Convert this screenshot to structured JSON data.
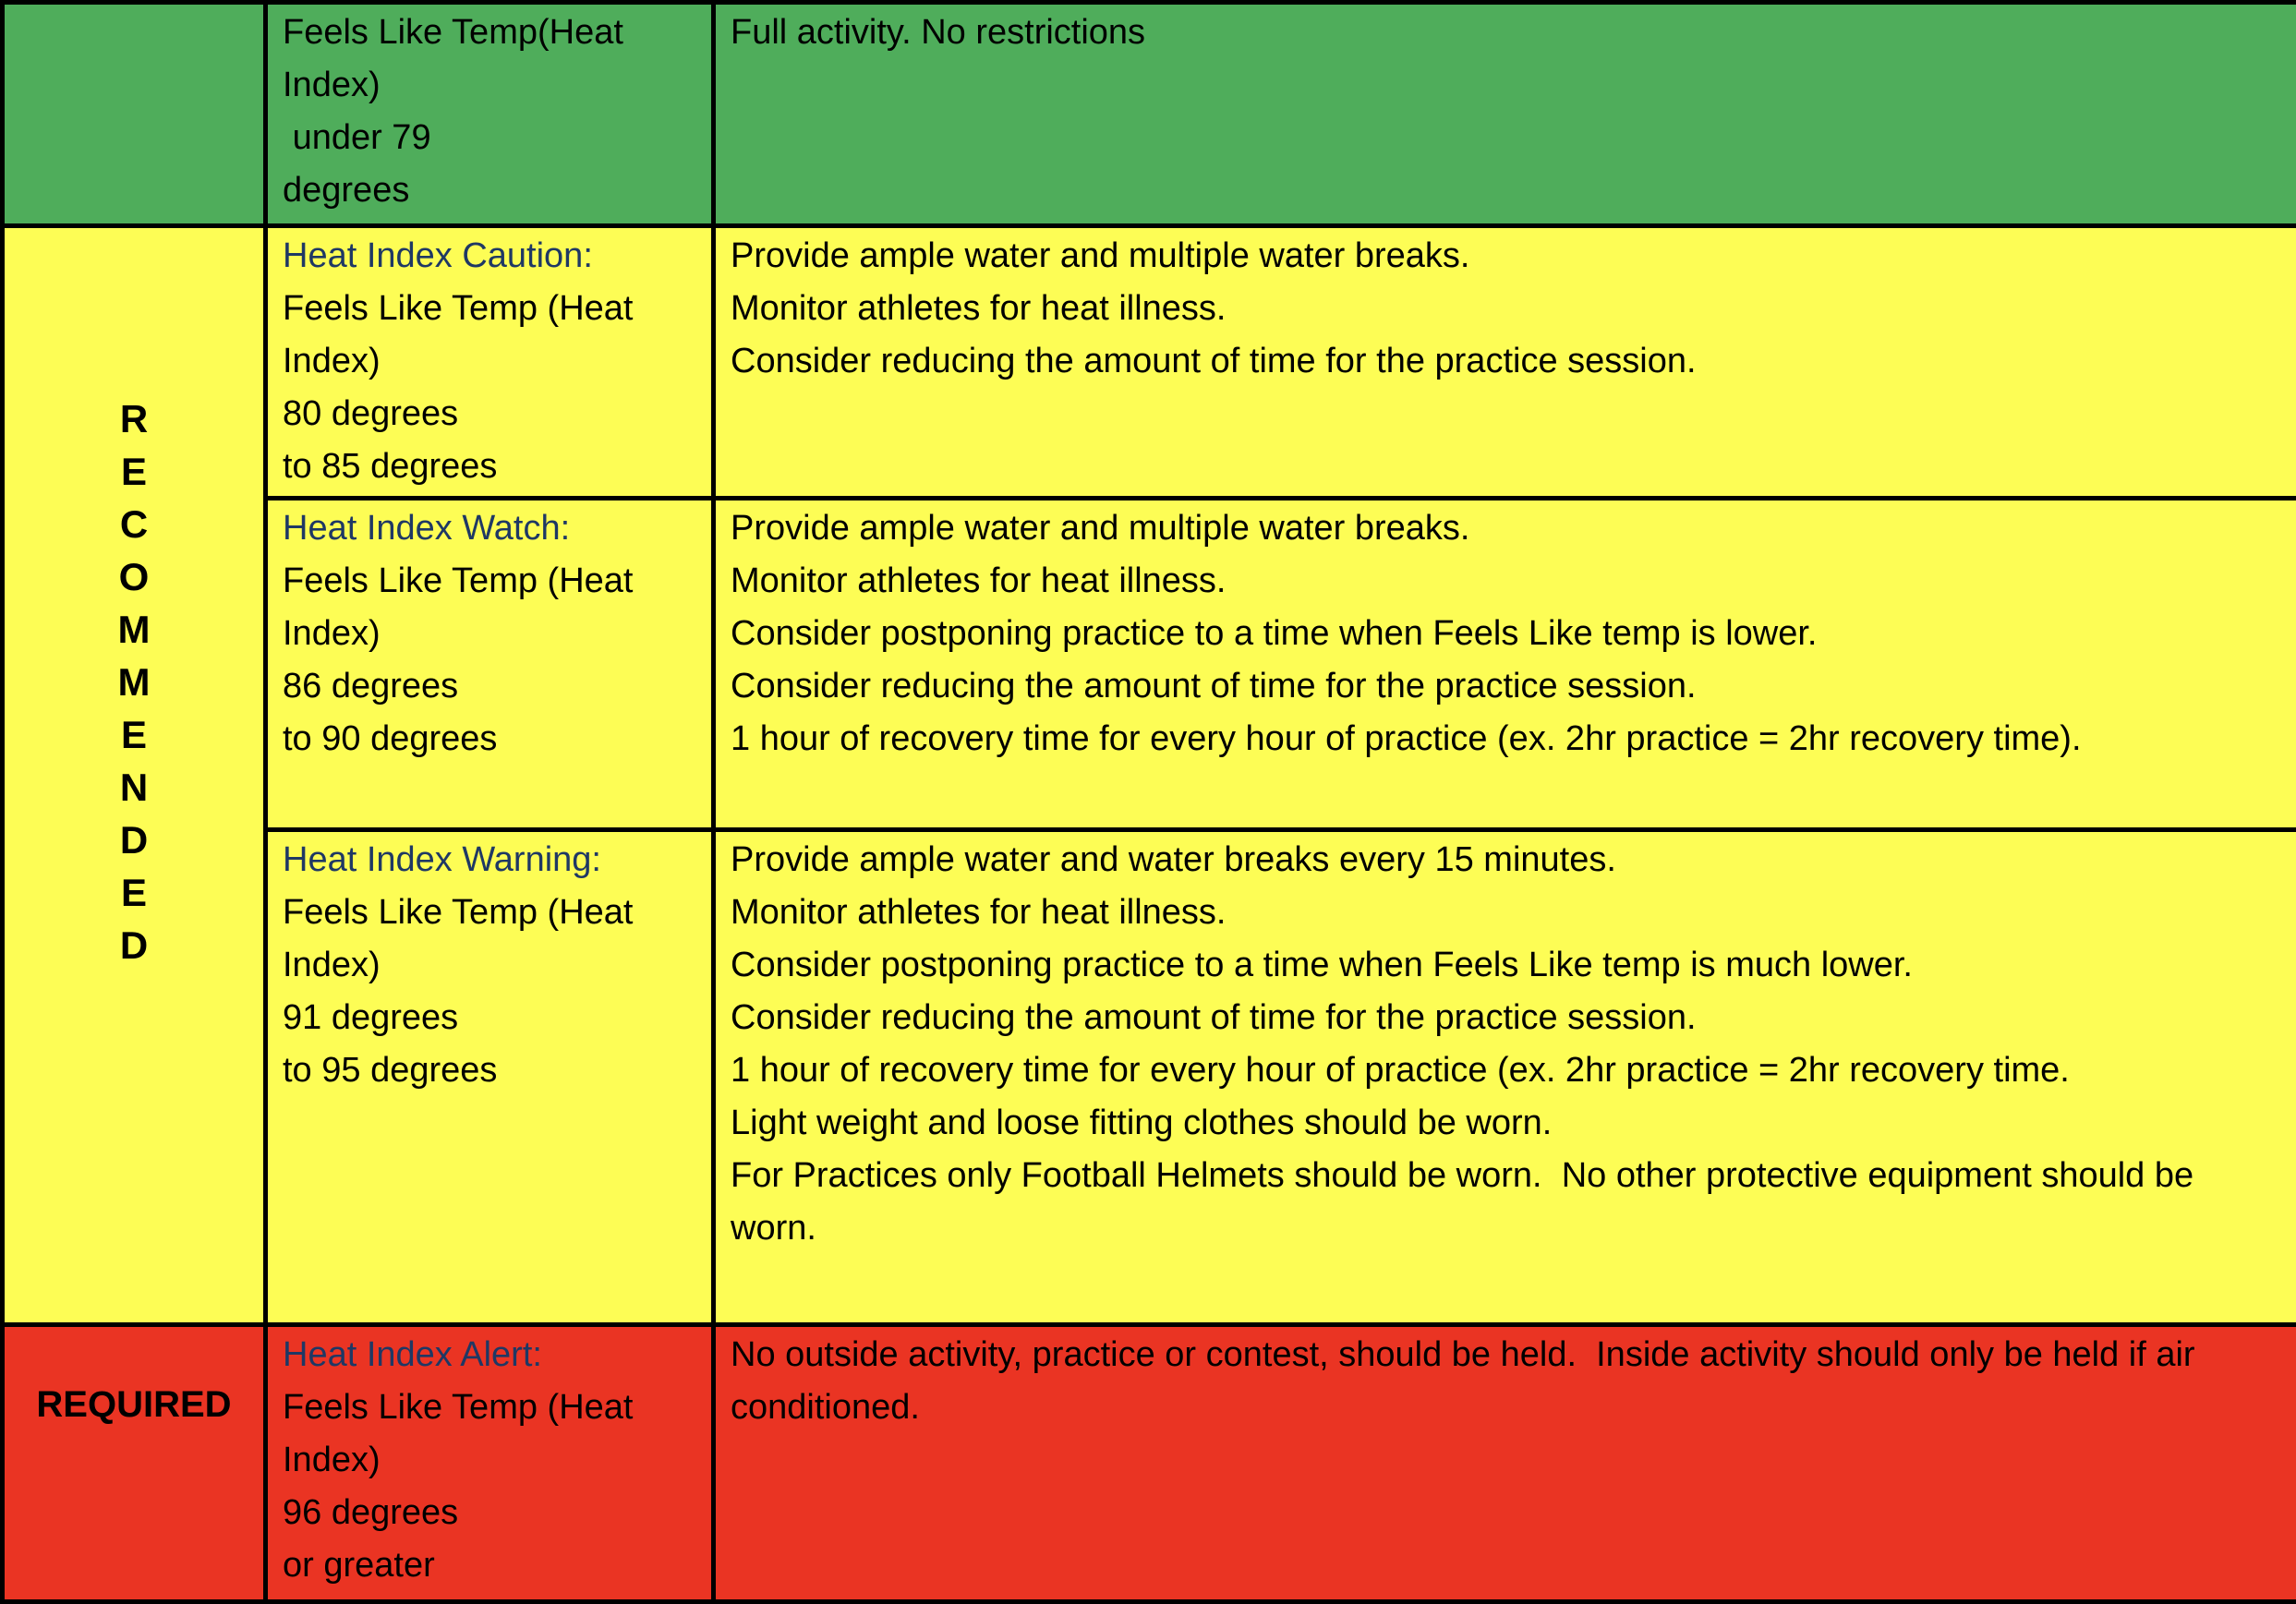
{
  "colors": {
    "green": "#4fad5b",
    "yellow": "#fdfd55",
    "red": "#ea3423",
    "heading": "#1f3864",
    "border": "#000000"
  },
  "left_labels": {
    "recommended": "RECOMMENDED",
    "required": "REQUIRED"
  },
  "rows": {
    "full_activity": {
      "condition_lines": [
        "Feels Like Temp(Heat Index)",
        " under 79",
        "degrees"
      ],
      "action_lines": [
        "Full activity. No restrictions"
      ]
    },
    "caution": {
      "title": "Heat Index Caution:",
      "condition_lines": [
        "Feels Like Temp (Heat Index)",
        "80 degrees",
        "to 85 degrees"
      ],
      "action_lines": [
        "Provide ample water and multiple water breaks.",
        "Monitor athletes for heat illness.",
        "Consider reducing the amount of time for the practice session."
      ]
    },
    "watch": {
      "title": "Heat Index Watch:",
      "condition_lines": [
        "Feels Like Temp (Heat Index)",
        "86 degrees",
        "to 90 degrees"
      ],
      "action_lines": [
        "Provide ample water and multiple water breaks.",
        "Monitor athletes for heat illness.",
        "Consider postponing practice to a time when Feels Like temp is lower.",
        "Consider reducing the amount of time for the practice session.",
        "1 hour of recovery time for every hour of practice (ex. 2hr practice = 2hr recovery time)."
      ]
    },
    "warning": {
      "title": "Heat Index Warning:",
      "condition_lines": [
        "Feels Like Temp (Heat Index)",
        "91 degrees",
        "to 95 degrees"
      ],
      "action_lines": [
        "Provide ample water and water breaks every 15 minutes.",
        "Monitor athletes for heat illness.",
        "Consider postponing practice to a time when Feels Like temp is much lower.",
        "Consider reducing the amount of time for the practice session.",
        "1 hour of recovery time for every hour of practice (ex. 2hr practice = 2hr recovery time.",
        "Light weight and loose fitting clothes should be worn.",
        "For Practices only Football Helmets should be worn.  No other protective equipment should be worn."
      ]
    },
    "alert": {
      "title": "Heat Index Alert:",
      "condition_lines": [
        "Feels Like Temp (Heat Index)",
        "96 degrees",
        "or greater"
      ],
      "action_lines": [
        "No outside activity, practice or contest, should be held.  Inside activity should only be held if air conditioned."
      ]
    }
  }
}
